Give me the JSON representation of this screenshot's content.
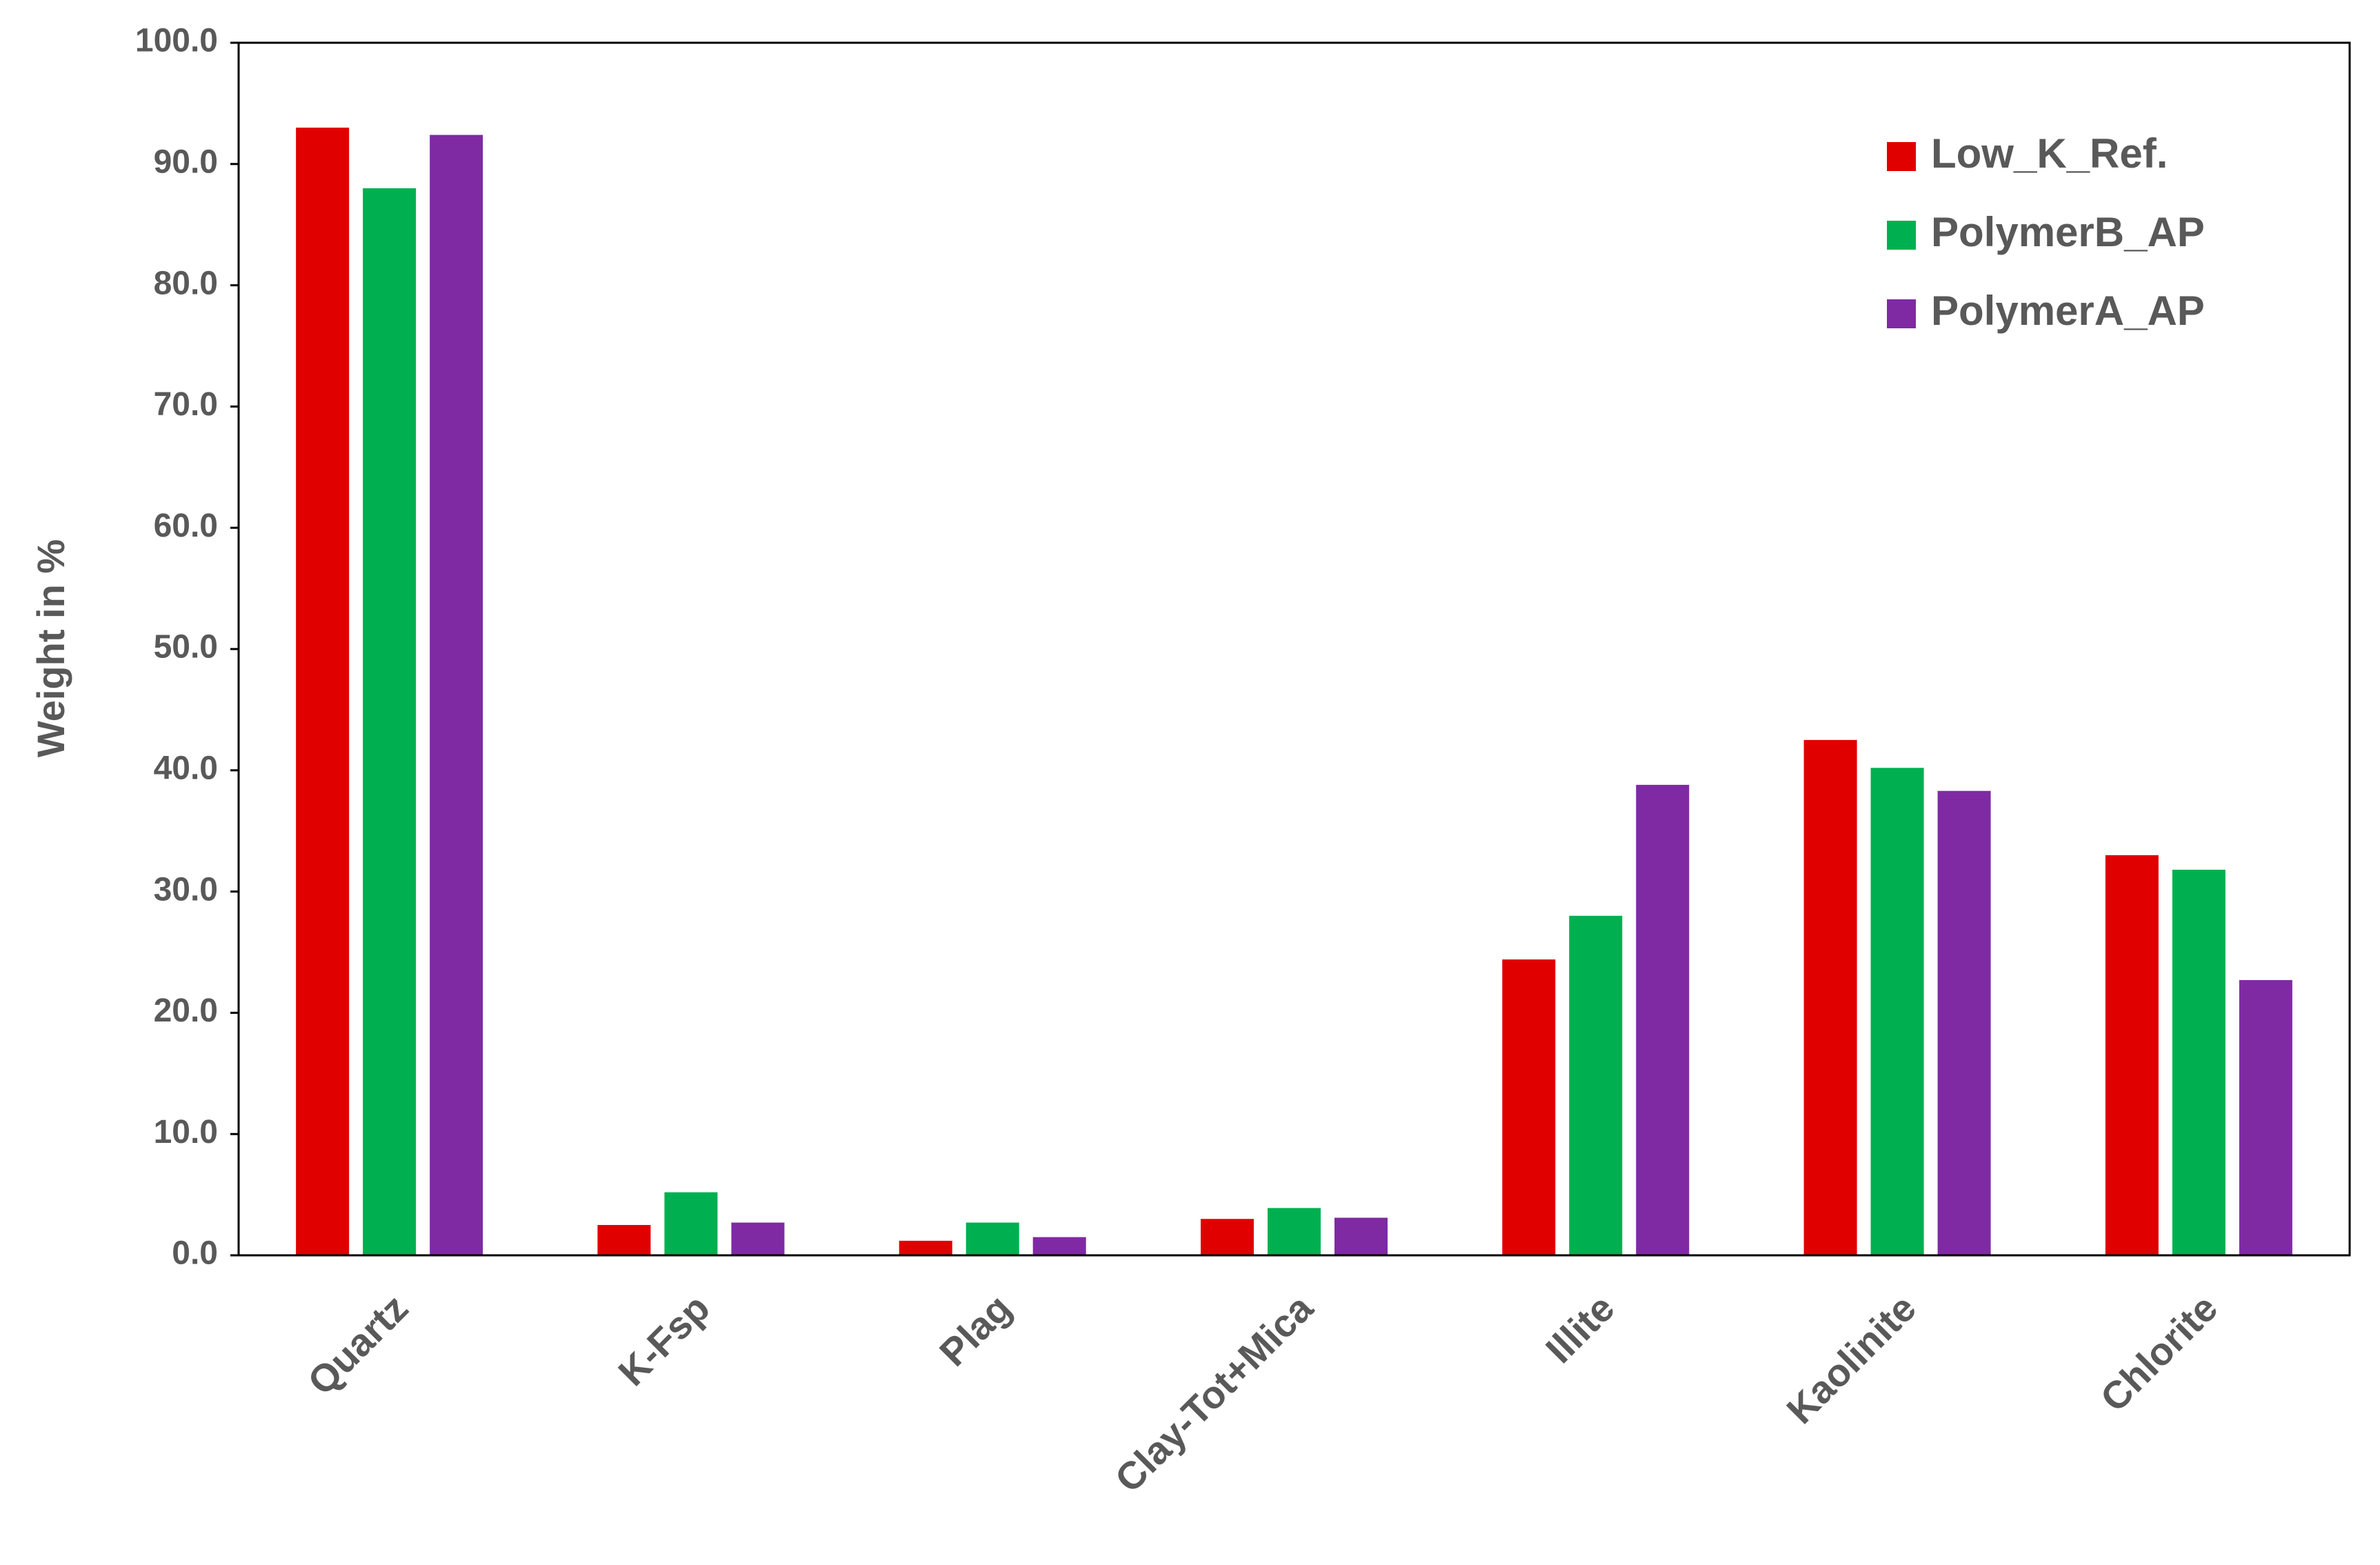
{
  "chart_data": {
    "type": "bar",
    "y_label": "Weight in  %",
    "categories": [
      "Quartz",
      "K-Fsp",
      "Plag",
      "Clay-Tot+Mica",
      "Illite",
      "Kaolinite",
      "Chlorite"
    ],
    "series": [
      {
        "name": "Low_K_Ref.",
        "color": "#e00000",
        "values": [
          93.0,
          2.5,
          1.2,
          3.0,
          24.4,
          42.5,
          33.0
        ]
      },
      {
        "name": "PolymerB_AP",
        "color": "#00b050",
        "values": [
          88.0,
          5.2,
          2.7,
          3.9,
          28.0,
          40.2,
          31.8
        ]
      },
      {
        "name": "PolymerA_AP",
        "color": "#7f2aa3",
        "values": [
          92.4,
          2.7,
          1.5,
          3.1,
          38.8,
          38.3,
          22.7
        ]
      }
    ],
    "ylim": [
      0,
      100
    ],
    "yticks": [
      {
        "value": 0,
        "label": "0.0"
      },
      {
        "value": 10,
        "label": "10.0"
      },
      {
        "value": 20,
        "label": "20.0"
      },
      {
        "value": 30,
        "label": "30.0"
      },
      {
        "value": 40,
        "label": "40.0"
      },
      {
        "value": 50,
        "label": "50.0"
      },
      {
        "value": 60,
        "label": "60.0"
      },
      {
        "value": 70,
        "label": "70.0"
      },
      {
        "value": 80,
        "label": "80.0"
      },
      {
        "value": 90,
        "label": "90.0"
      },
      {
        "value": 100,
        "label": "100.0"
      }
    ],
    "legend": "top-right",
    "grid": false
  }
}
